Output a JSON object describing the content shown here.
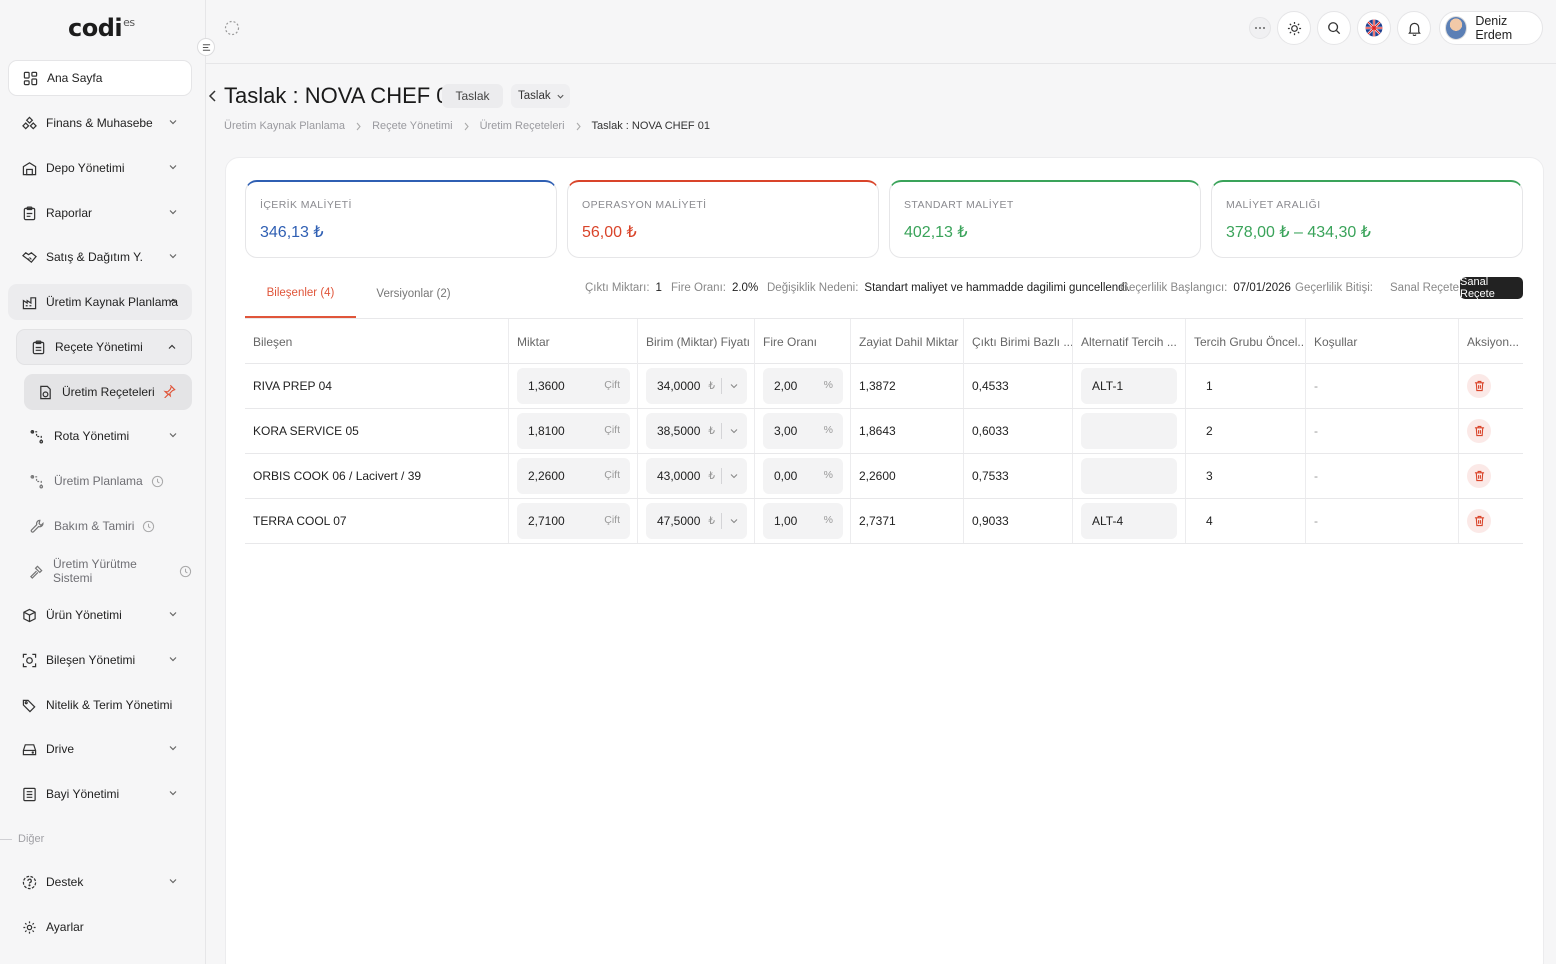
{
  "app": {
    "logo": "codi",
    "logo_sup": "es"
  },
  "sidebar": {
    "items": [
      {
        "label": "Ana Sayfa"
      },
      {
        "label": "Finans & Muhasebe"
      },
      {
        "label": "Depo Yönetimi"
      },
      {
        "label": "Raporlar"
      },
      {
        "label": "Satış & Dağıtım Y."
      },
      {
        "label": "Üretim Kaynak Planlama"
      },
      {
        "label": "Reçete Yönetimi"
      },
      {
        "label": "Üretim Reçeteleri"
      },
      {
        "label": "Rota Yönetimi"
      },
      {
        "label": "Üretim Planlama"
      },
      {
        "label": "Bakım & Tamiri"
      },
      {
        "label": "Üretim Yürütme Sistemi"
      },
      {
        "label": "Ürün Yönetimi"
      },
      {
        "label": "Bileşen Yönetimi"
      },
      {
        "label": "Nitelik & Terim Yönetimi"
      },
      {
        "label": "Drive"
      },
      {
        "label": "Bayi Yönetimi"
      },
      {
        "label": "Destek"
      },
      {
        "label": "Ayarlar"
      }
    ],
    "section_label": "Diğer"
  },
  "topbar": {
    "user_name": "Deniz Erdem"
  },
  "page": {
    "title": "Taslak : NOVA CHEF 01",
    "status_pill": "Taslak",
    "status_select": "Taslak",
    "breadcrumb": [
      "Üretim Kaynak Planlama",
      "Reçete Yönetimi",
      "Üretim Reçeteleri",
      "Taslak : NOVA CHEF 01"
    ]
  },
  "cards": [
    {
      "label": "İÇERİK MALİYETİ",
      "value": "346,13 ₺",
      "color": "#2f5fb3"
    },
    {
      "label": "OPERASYON MALİYETİ",
      "value": "56,00 ₺",
      "color": "#d9442a"
    },
    {
      "label": "STANDART MALİYET",
      "value": "402,13 ₺",
      "color": "#3aa35a"
    },
    {
      "label": "MALİYET ARALIĞI",
      "value": "378,00 ₺ – 434,30 ₺",
      "color": "#3aa35a"
    }
  ],
  "tabs": [
    {
      "label": "Bileşenler (4)"
    },
    {
      "label": "Versiyonlar (2)"
    }
  ],
  "meta": {
    "output_qty_label": "Çıktı Miktarı:",
    "output_qty": "1",
    "scrap_rate_label": "Fire Oranı:",
    "scrap_rate": "2.0%",
    "change_reason_label": "Değişiklik Nedeni:",
    "change_reason": "Standart maliyet ve hammadde dagilimi guncellendi.",
    "valid_from_label": "Geçerlilik Başlangıcı:",
    "valid_from": "07/01/2026",
    "valid_to_label": "Geçerlilik Bitişi:",
    "virtual_label": "Sanal Reçete:",
    "virtual_button": "Sanal Reçete"
  },
  "table": {
    "headers": [
      "Bileşen",
      "Miktar",
      "Birim (Miktar) Fiyatı",
      "Fire Oranı",
      "Zayiat Dahil Miktar",
      "Çıktı Birimi Bazlı ...",
      "Alternatif Tercih ...",
      "Tercih Grubu Öncel...",
      "Koşullar",
      "Aksiyon..."
    ],
    "qty_unit": "Çift",
    "currency": "₺",
    "percent": "%",
    "rows": [
      {
        "component": "RIVA PREP 04",
        "qty": "1,3600",
        "price": "34,0000",
        "scrap": "2,00",
        "with_scrap": "1,3872",
        "per_output": "0,4533",
        "alt": "ALT-1",
        "priority": "1",
        "conditions": "-"
      },
      {
        "component": "KORA SERVICE 05",
        "qty": "1,8100",
        "price": "38,5000",
        "scrap": "3,00",
        "with_scrap": "1,8643",
        "per_output": "0,6033",
        "alt": "",
        "priority": "2",
        "conditions": "-"
      },
      {
        "component": "ORBIS COOK 06 / Lacivert / 39",
        "qty": "2,2600",
        "price": "43,0000",
        "scrap": "0,00",
        "with_scrap": "2,2600",
        "per_output": "0,7533",
        "alt": "",
        "priority": "3",
        "conditions": "-"
      },
      {
        "component": "TERRA COOL 07",
        "qty": "2,7100",
        "price": "47,5000",
        "scrap": "1,00",
        "with_scrap": "2,7371",
        "per_output": "0,9033",
        "alt": "ALT-4",
        "priority": "4",
        "conditions": "-"
      }
    ]
  },
  "colors": {
    "accent": "#e0553a"
  }
}
